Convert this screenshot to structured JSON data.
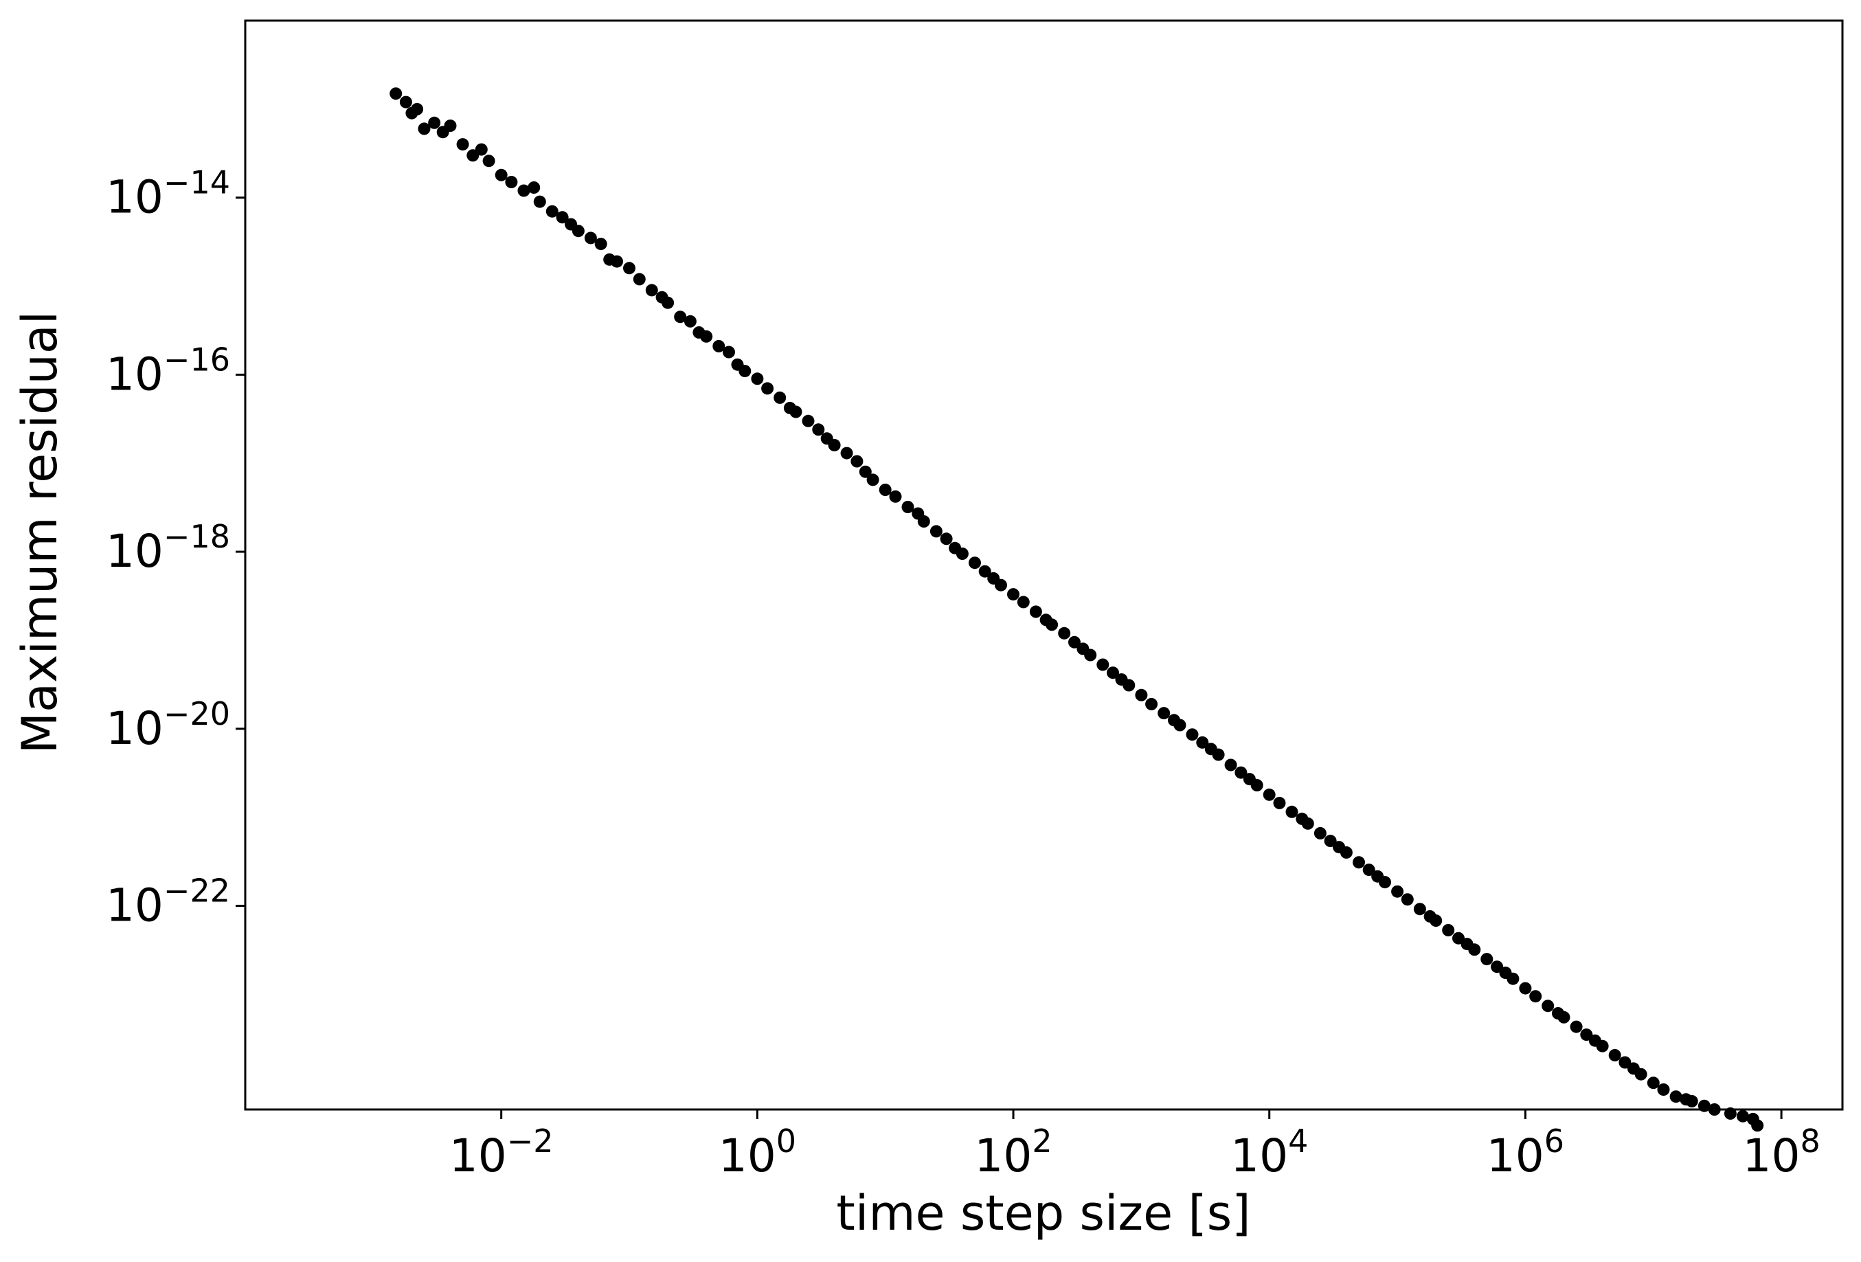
{
  "chart_data": {
    "type": "scatter",
    "xlabel": "time step size [s]",
    "ylabel": "Maximum residual",
    "xscale": "log",
    "yscale": "log",
    "xlim": [
      0.0001,
      300000000
    ],
    "ylim": [
      5e-25,
      1e-12
    ],
    "grid": false,
    "legend": "none",
    "marker_color": "#000000",
    "x_ticks": [
      {
        "base": "10",
        "exp": "−2",
        "value": 0.01
      },
      {
        "base": "10",
        "exp": "0",
        "value": 1
      },
      {
        "base": "10",
        "exp": "2",
        "value": 100
      },
      {
        "base": "10",
        "exp": "4",
        "value": 10000
      },
      {
        "base": "10",
        "exp": "6",
        "value": 1000000
      },
      {
        "base": "10",
        "exp": "8",
        "value": 100000000
      }
    ],
    "y_ticks": [
      {
        "base": "10",
        "exp": "−14",
        "value": 1e-14
      },
      {
        "base": "10",
        "exp": "−16",
        "value": 1e-16
      },
      {
        "base": "10",
        "exp": "−18",
        "value": 1e-18
      },
      {
        "base": "10",
        "exp": "−20",
        "value": 1e-20
      },
      {
        "base": "10",
        "exp": "−22",
        "value": 1e-22
      }
    ],
    "points": [
      [
        0.0015,
        1.5e-13
      ],
      [
        0.0018,
        1.2e-13
      ],
      [
        0.002,
        9e-14
      ],
      [
        0.0022,
        1e-13
      ],
      [
        0.0025,
        6e-14
      ],
      [
        0.003,
        7e-14
      ],
      [
        0.0035,
        5.5e-14
      ],
      [
        0.004,
        6.5e-14
      ],
      [
        0.005,
        4e-14
      ],
      [
        0.006,
        3e-14
      ],
      [
        0.007,
        3.5e-14
      ],
      [
        0.008,
        2.6e-14
      ],
      [
        0.01,
        1.8e-14
      ],
      [
        0.012,
        1.5e-14
      ],
      [
        0.015,
        1.2e-14
      ],
      [
        0.018,
        1.3e-14
      ],
      [
        0.02,
        9e-15
      ],
      [
        0.025,
        7e-15
      ],
      [
        0.03,
        6e-15
      ],
      [
        0.035,
        5e-15
      ],
      [
        0.04,
        4.2e-15
      ],
      [
        0.05,
        3.5e-15
      ],
      [
        0.06,
        3e-15
      ],
      [
        0.07,
        2e-15
      ],
      [
        0.08,
        1.9e-15
      ],
      [
        0.1,
        1.6e-15
      ],
      [
        0.12,
        1.2e-15
      ],
      [
        0.15,
        9e-16
      ],
      [
        0.18,
        7.5e-16
      ],
      [
        0.2,
        6.5e-16
      ],
      [
        0.25,
        4.5e-16
      ],
      [
        0.3,
        4e-16
      ],
      [
        0.35,
        3e-16
      ],
      [
        0.4,
        2.7e-16
      ],
      [
        0.5,
        2.1e-16
      ],
      [
        0.6,
        1.8e-16
      ],
      [
        0.7,
        1.3e-16
      ],
      [
        0.8,
        1.1e-16
      ],
      [
        1.0,
        9e-17
      ],
      [
        1.2,
        7e-17
      ],
      [
        1.5,
        5.5e-17
      ],
      [
        1.8,
        4.2e-17
      ],
      [
        2.0,
        3.8e-17
      ],
      [
        2.5,
        3e-17
      ],
      [
        3.0,
        2.4e-17
      ],
      [
        3.5,
        1.9e-17
      ],
      [
        4.0,
        1.6e-17
      ],
      [
        5.0,
        1.3e-17
      ],
      [
        6.0,
        1.05e-17
      ],
      [
        7.0,
        8e-18
      ],
      [
        8.0,
        6.5e-18
      ],
      [
        10,
        5e-18
      ],
      [
        12,
        4.2e-18
      ],
      [
        15,
        3.2e-18
      ],
      [
        18,
        2.7e-18
      ],
      [
        20,
        2.2e-18
      ],
      [
        25,
        1.7e-18
      ],
      [
        30,
        1.4e-18
      ],
      [
        35,
        1.1e-18
      ],
      [
        40,
        9.5e-19
      ],
      [
        50,
        7.5e-19
      ],
      [
        60,
        6e-19
      ],
      [
        70,
        5e-19
      ],
      [
        80,
        4.2e-19
      ],
      [
        100,
        3.3e-19
      ],
      [
        120,
        2.7e-19
      ],
      [
        150,
        2.1e-19
      ],
      [
        180,
        1.7e-19
      ],
      [
        200,
        1.5e-19
      ],
      [
        250,
        1.2e-19
      ],
      [
        300,
        9.5e-20
      ],
      [
        350,
        8e-20
      ],
      [
        400,
        6.8e-20
      ],
      [
        500,
        5.3e-20
      ],
      [
        600,
        4.3e-20
      ],
      [
        700,
        3.6e-20
      ],
      [
        800,
        3.1e-20
      ],
      [
        1000,
        2.4e-20
      ],
      [
        1200,
        1.9e-20
      ],
      [
        1500,
        1.5e-20
      ],
      [
        1800,
        1.25e-20
      ],
      [
        2000,
        1.1e-20
      ],
      [
        2500,
        8.6e-21
      ],
      [
        3000,
        7e-21
      ],
      [
        3500,
        5.9e-21
      ],
      [
        4000,
        5.1e-21
      ],
      [
        5000,
        3.9e-21
      ],
      [
        6000,
        3.2e-21
      ],
      [
        7000,
        2.7e-21
      ],
      [
        8000,
        2.3e-21
      ],
      [
        10000,
        1.8e-21
      ],
      [
        12000,
        1.45e-21
      ],
      [
        15000,
        1.15e-21
      ],
      [
        18000,
        9.6e-22
      ],
      [
        20000,
        8.5e-22
      ],
      [
        25000,
        6.6e-22
      ],
      [
        30000,
        5.4e-22
      ],
      [
        35000,
        4.6e-22
      ],
      [
        40000,
        4e-22
      ],
      [
        50000,
        3.1e-22
      ],
      [
        60000,
        2.55e-22
      ],
      [
        70000,
        2.15e-22
      ],
      [
        80000,
        1.85e-22
      ],
      [
        100000,
        1.45e-22
      ],
      [
        120000,
        1.18e-22
      ],
      [
        150000,
        9.2e-23
      ],
      [
        180000,
        7.6e-23
      ],
      [
        200000,
        6.8e-23
      ],
      [
        250000,
        5.3e-23
      ],
      [
        300000,
        4.3e-23
      ],
      [
        350000,
        3.7e-23
      ],
      [
        400000,
        3.2e-23
      ],
      [
        500000,
        2.5e-23
      ],
      [
        600000,
        2.05e-23
      ],
      [
        700000,
        1.75e-23
      ],
      [
        800000,
        1.5e-23
      ],
      [
        1000000,
        1.17e-23
      ],
      [
        1200000,
        9.5e-24
      ],
      [
        1500000,
        7.4e-24
      ],
      [
        1800000,
        6.1e-24
      ],
      [
        2000000,
        5.5e-24
      ],
      [
        2500000,
        4.3e-24
      ],
      [
        3000000,
        3.5e-24
      ],
      [
        3500000,
        3e-24
      ],
      [
        4000000,
        2.6e-24
      ],
      [
        5000000,
        2.05e-24
      ],
      [
        6000000,
        1.7e-24
      ],
      [
        7000000,
        1.45e-24
      ],
      [
        8000000,
        1.25e-24
      ],
      [
        10000000,
        1e-24
      ],
      [
        12000000,
        8.4e-25
      ],
      [
        15000000,
        7e-25
      ],
      [
        18000000,
        6.5e-25
      ],
      [
        20000000,
        6.2e-25
      ],
      [
        25000000,
        5.5e-25
      ],
      [
        30000000,
        5e-25
      ],
      [
        40000000,
        4.5e-25
      ],
      [
        50000000,
        4.2e-25
      ],
      [
        60000000,
        3.9e-25
      ],
      [
        65000000,
        3.3e-25
      ]
    ]
  }
}
